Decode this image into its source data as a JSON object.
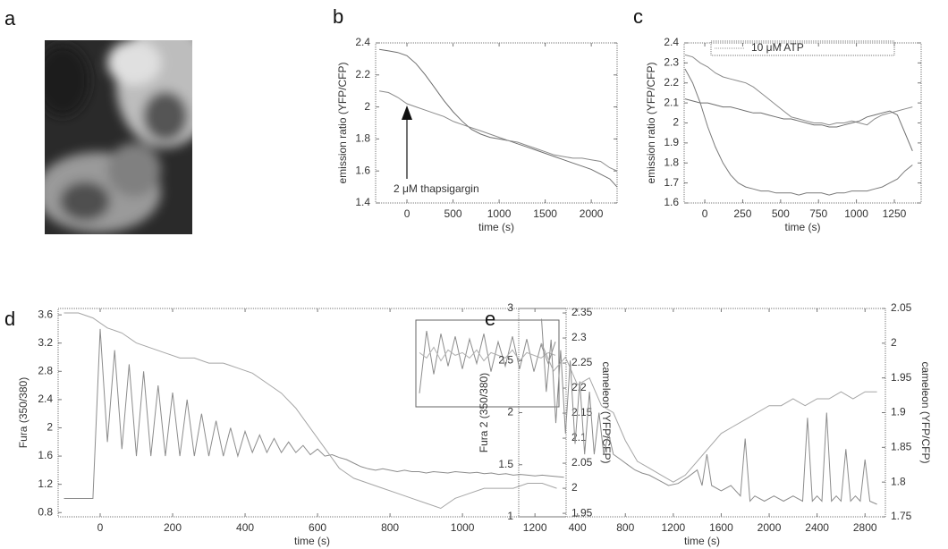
{
  "chart_data": [
    {
      "type": "image",
      "panel": "a"
    },
    {
      "type": "line",
      "panel": "b",
      "xlabel": "time (s)",
      "ylabel": "emission ratio (YFP/CFP)",
      "annotation": "2 μM thapsigargin",
      "xlim": [
        -340,
        2280
      ],
      "xticks": [
        0,
        500,
        1000,
        1500,
        2000
      ],
      "ylim": [
        1.4,
        2.4
      ],
      "yticks": [
        1.4,
        1.6,
        1.8,
        2,
        2.2,
        2.4
      ],
      "x": [
        -300,
        -200,
        -100,
        0,
        100,
        200,
        300,
        400,
        500,
        600,
        700,
        800,
        900,
        1000,
        1100,
        1200,
        1300,
        1400,
        1500,
        1600,
        1700,
        1800,
        1900,
        2000,
        2100,
        2200,
        2280
      ],
      "series": [
        {
          "color": "#6e6e6e",
          "values": [
            2.36,
            2.35,
            2.34,
            2.32,
            2.27,
            2.2,
            2.12,
            2.04,
            1.97,
            1.91,
            1.86,
            1.83,
            1.81,
            1.8,
            1.79,
            1.77,
            1.75,
            1.73,
            1.71,
            1.69,
            1.67,
            1.65,
            1.63,
            1.61,
            1.58,
            1.55,
            1.5
          ]
        },
        {
          "color": "#8a8a8a",
          "values": [
            2.1,
            2.09,
            2.06,
            2.02,
            2.0,
            1.98,
            1.96,
            1.94,
            1.91,
            1.89,
            1.87,
            1.85,
            1.83,
            1.81,
            1.79,
            1.78,
            1.76,
            1.74,
            1.72,
            1.7,
            1.69,
            1.68,
            1.68,
            1.67,
            1.66,
            1.62,
            1.6
          ]
        }
      ]
    },
    {
      "type": "line",
      "panel": "c",
      "xlabel": "time (s)",
      "ylabel": "emission ratio (YFP/CFP)",
      "annotation": "10 μM ATP",
      "xlim": [
        -136,
        1427
      ],
      "xticks": [
        0,
        250,
        500,
        750,
        1000,
        1250
      ],
      "ylim": [
        1.6,
        2.4
      ],
      "yticks": [
        1.6,
        1.7,
        1.8,
        1.9,
        2,
        2.1,
        2.2,
        2.3,
        2.4
      ],
      "x": [
        -130,
        -80,
        -30,
        20,
        70,
        120,
        170,
        220,
        270,
        320,
        370,
        420,
        470,
        520,
        570,
        620,
        670,
        720,
        770,
        820,
        870,
        920,
        970,
        1020,
        1070,
        1120,
        1170,
        1220,
        1270,
        1320,
        1370
      ],
      "series": [
        {
          "color": "#8a8a8a",
          "values": [
            2.34,
            2.33,
            2.3,
            2.28,
            2.25,
            2.23,
            2.22,
            2.21,
            2.2,
            2.18,
            2.15,
            2.12,
            2.09,
            2.06,
            2.03,
            2.02,
            2.01,
            2.0,
            2.0,
            1.99,
            2.0,
            2.0,
            2.01,
            2.0,
            1.99,
            2.02,
            2.04,
            2.05,
            2.06,
            2.07,
            2.08
          ]
        },
        {
          "color": "#6e6e6e",
          "values": [
            2.12,
            2.11,
            2.1,
            2.1,
            2.09,
            2.08,
            2.08,
            2.07,
            2.06,
            2.05,
            2.05,
            2.04,
            2.03,
            2.02,
            2.02,
            2.01,
            2.0,
            1.99,
            1.99,
            1.98,
            1.98,
            1.99,
            2.0,
            2.01,
            2.03,
            2.04,
            2.05,
            2.06,
            2.04,
            1.95,
            1.86
          ]
        },
        {
          "color": "#7a7a7a",
          "values": [
            2.27,
            2.2,
            2.1,
            1.98,
            1.88,
            1.8,
            1.74,
            1.7,
            1.68,
            1.67,
            1.66,
            1.66,
            1.65,
            1.65,
            1.65,
            1.64,
            1.65,
            1.65,
            1.65,
            1.64,
            1.65,
            1.65,
            1.66,
            1.66,
            1.66,
            1.67,
            1.68,
            1.7,
            1.72,
            1.76,
            1.79
          ]
        }
      ]
    },
    {
      "type": "line",
      "panel": "d",
      "xlabel": "time (s)",
      "ylabel": "Fura (350/380)",
      "y2label": "cameleon (YFP/CFP)",
      "xlim": [
        -116,
        1286
      ],
      "xticks": [
        0,
        200,
        400,
        600,
        800,
        1000,
        1200
      ],
      "ylim": [
        0.74,
        3.69
      ],
      "yticks": [
        0.8,
        1.2,
        1.6,
        2,
        2.4,
        2.8,
        3.2,
        3.6
      ],
      "y2lim": [
        1.943,
        2.359
      ],
      "y2ticks": [
        1.95,
        2,
        2.05,
        2.1,
        2.15,
        2.2,
        2.25,
        2.3,
        2.35
      ],
      "series": [
        {
          "color": "#8c8c8c",
          "x": [
            -100,
            -80,
            -60,
            -40,
            -20,
            0,
            20,
            40,
            60,
            80,
            100,
            120,
            140,
            160,
            180,
            200,
            220,
            240,
            260,
            280,
            300,
            320,
            340,
            360,
            380,
            400,
            420,
            440,
            460,
            480,
            500,
            520,
            540,
            560,
            580,
            600,
            620,
            640,
            660,
            680,
            700,
            720,
            740,
            760,
            780,
            800,
            820,
            840,
            860,
            880,
            900,
            920,
            940,
            960,
            980,
            1000,
            1020,
            1040,
            1060,
            1080,
            1100,
            1120,
            1140,
            1160,
            1180,
            1200,
            1220,
            1240,
            1260,
            1280
          ],
          "values": [
            1,
            1,
            1,
            1,
            1,
            3.4,
            1.8,
            3.1,
            1.7,
            2.9,
            1.6,
            2.8,
            1.6,
            2.6,
            1.6,
            2.5,
            1.6,
            2.4,
            1.6,
            2.2,
            1.6,
            2.1,
            1.6,
            2.0,
            1.6,
            1.95,
            1.65,
            1.9,
            1.65,
            1.85,
            1.65,
            1.8,
            1.65,
            1.75,
            1.62,
            1.7,
            1.6,
            1.62,
            1.58,
            1.55,
            1.5,
            1.45,
            1.42,
            1.4,
            1.42,
            1.4,
            1.38,
            1.4,
            1.38,
            1.38,
            1.36,
            1.38,
            1.37,
            1.36,
            1.38,
            1.37,
            1.36,
            1.37,
            1.35,
            1.36,
            1.34,
            1.35,
            1.33,
            1.34,
            1.33,
            1.32,
            1.33,
            1.32,
            1.31,
            1.3
          ]
        },
        {
          "color": "#a5a5a5",
          "axis": "y2",
          "x": [
            -100,
            -60,
            -20,
            20,
            60,
            100,
            140,
            180,
            220,
            260,
            300,
            340,
            380,
            420,
            460,
            500,
            540,
            580,
            620,
            660,
            700,
            740,
            780,
            820,
            860,
            900,
            940,
            980,
            1020,
            1060,
            1100,
            1140,
            1180,
            1220,
            1260
          ],
          "values": [
            2.35,
            2.35,
            2.34,
            2.32,
            2.31,
            2.29,
            2.28,
            2.27,
            2.26,
            2.26,
            2.25,
            2.25,
            2.24,
            2.23,
            2.21,
            2.19,
            2.16,
            2.12,
            2.08,
            2.04,
            2.02,
            2.01,
            2.0,
            1.99,
            1.98,
            1.97,
            1.96,
            1.98,
            1.99,
            2.0,
            2.0,
            2.0,
            2.01,
            2.01,
            2.0
          ]
        }
      ],
      "inset": {
        "ylim": [
          2.0,
          2.32
        ],
        "series": [
          {
            "color": "#8c8c8c",
            "values": [
              2.05,
              2.28,
              2.12,
              2.27,
              2.15,
              2.26,
              2.14,
              2.25,
              2.16,
              2.27,
              2.13,
              2.24,
              2.15,
              2.26,
              2.14,
              2.25,
              2.13,
              2.23,
              2.16,
              2.24
            ]
          },
          {
            "color": "#b0b0b0",
            "values": [
              2.2,
              2.18,
              2.22,
              2.17,
              2.21,
              2.19,
              2.2,
              2.18,
              2.21,
              2.17,
              2.2,
              2.19,
              2.18,
              2.21,
              2.17,
              2.2,
              2.19,
              2.18,
              2.2,
              2.19
            ]
          }
        ]
      }
    },
    {
      "type": "line",
      "panel": "e",
      "xlabel": "time (s)",
      "ylabel": "Fura 2 (350/380)",
      "y2label": "cameleon (YFP/CFP)",
      "xlim": [
        -90,
        2970
      ],
      "xticks": [
        400,
        800,
        1200,
        1600,
        2000,
        2400,
        2800
      ],
      "ylim": [
        1,
        3
      ],
      "yticks": [
        1,
        1.5,
        2,
        2.5,
        3
      ],
      "y2lim": [
        1.75,
        2.05
      ],
      "y2ticks": [
        1.75,
        1.8,
        1.85,
        1.9,
        1.95,
        2,
        2.05
      ],
      "series": [
        {
          "color": "#8c8c8c",
          "x": [
            100,
            140,
            180,
            220,
            260,
            300,
            340,
            380,
            420,
            460,
            500,
            540,
            580,
            620,
            660,
            700,
            760,
            820,
            880,
            940,
            1000,
            1080,
            1160,
            1240,
            1320,
            1400,
            1440,
            1480,
            1520,
            1600,
            1680,
            1760,
            1800,
            1840,
            1880,
            1960,
            2040,
            2120,
            2200,
            2280,
            2320,
            2360,
            2400,
            2440,
            2480,
            2520,
            2560,
            2600,
            2640,
            2680,
            2720,
            2760,
            2800,
            2840,
            2900
          ],
          "values": [
            2.9,
            2.2,
            2.7,
            1.9,
            2.6,
            1.8,
            2.5,
            1.7,
            2.3,
            1.6,
            2.2,
            1.6,
            2.0,
            1.6,
            1.8,
            1.6,
            1.55,
            1.5,
            1.45,
            1.42,
            1.4,
            1.35,
            1.3,
            1.32,
            1.38,
            1.45,
            1.3,
            1.6,
            1.3,
            1.25,
            1.3,
            1.2,
            1.75,
            1.15,
            1.2,
            1.15,
            1.2,
            1.15,
            1.2,
            1.15,
            1.95,
            1.15,
            1.2,
            1.15,
            2.0,
            1.15,
            1.2,
            1.15,
            1.65,
            1.15,
            1.2,
            1.15,
            1.55,
            1.15,
            1.12
          ]
        },
        {
          "color": "#a5a5a5",
          "axis": "y2",
          "x": [
            100,
            200,
            300,
            400,
            500,
            600,
            700,
            800,
            900,
            1000,
            1100,
            1200,
            1300,
            1400,
            1500,
            1600,
            1700,
            1800,
            1900,
            2000,
            2100,
            2200,
            2300,
            2400,
            2500,
            2600,
            2700,
            2800,
            2900
          ],
          "values": [
            2.0,
            1.96,
            1.98,
            1.94,
            1.95,
            1.91,
            1.9,
            1.86,
            1.83,
            1.82,
            1.81,
            1.8,
            1.81,
            1.83,
            1.85,
            1.87,
            1.88,
            1.89,
            1.9,
            1.91,
            1.91,
            1.92,
            1.91,
            1.92,
            1.92,
            1.93,
            1.92,
            1.93,
            1.93
          ]
        }
      ]
    }
  ]
}
